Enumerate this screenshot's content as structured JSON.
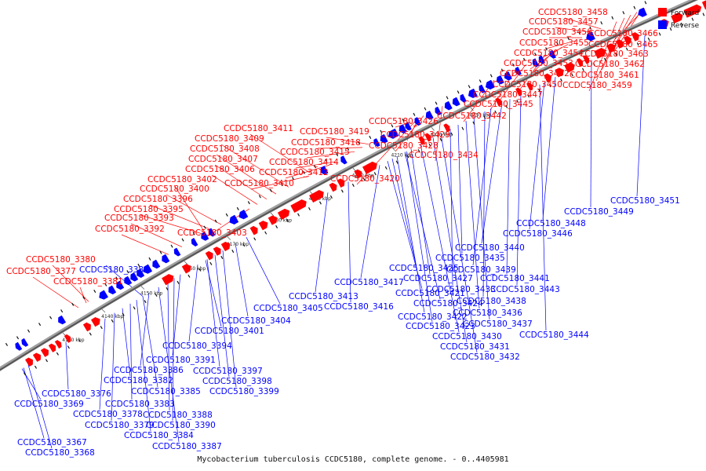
{
  "caption": "Mycobacterium tuberculosis CCDC5180, complete genome. - 0..4405981",
  "legend": {
    "forward": {
      "label": "Forward",
      "color": "#ff0000"
    },
    "reverse": {
      "label": "Reverse",
      "color": "#0000ff"
    }
  },
  "scale_ticks": [
    "4130 kbp",
    "4140 kbp",
    "4150 kbp",
    "4160 kbp",
    "4170 kbp",
    "4180 kbp",
    "4190 kbp",
    "4200 kbp",
    "4210 kbp",
    "4220 kbp",
    "4230 kbp"
  ],
  "forward_genes": [
    "CCDC5180_3377",
    "CCDC5180_3380",
    "CCDC5180_3381",
    "CCDC5180_3392",
    "CCDC5180_3393",
    "CCDC5180_3395",
    "CCDC5180_3396",
    "CCDC5180_3400",
    "CCDC5180_3402",
    "CCDC5180_3403",
    "CCDC5180_3406",
    "CCDC5180_3407",
    "CCDC5180_3408",
    "CCDC5180_3409",
    "CCDC5180_3410",
    "CCDC5180_3411",
    "CCDC5180_3412",
    "CCDC5180_3414",
    "CCDC5180_3415",
    "CCDC5180_3418",
    "CCDC5180_3419",
    "CCDC5180_3420",
    "CCDC5180_3426",
    "CCDC5180_3428",
    "CCDC5180_3429",
    "CCDC5180_3434",
    "CCDC5180_3442",
    "CCDC5180_3445",
    "CCDC5180_3447",
    "CCDC5180_3450",
    "CCDC5180_3452",
    "CCDC5180_3453",
    "CCDC5180_3454",
    "CCDC5180_3455",
    "CCDC5180_3456",
    "CCDC5180_3457",
    "CCDC5180_3458",
    "CCDC5180_3459",
    "CCDC5180_3461",
    "CCDC5180_3462",
    "CCDC5180_3463",
    "CCDC5180_3465",
    "CCDC5180_3466"
  ],
  "reverse_genes": [
    "CCDC5180_3367",
    "CCDC5180_3368",
    "CCDC5180_3369",
    "CCDC5180_3376",
    "CCDC5180_3378",
    "CCDC5180_3379",
    "CCDC5180_3382",
    "CCDC5180_3383",
    "CCDC5180_3384",
    "CCDC5180_3385",
    "CCDC5180_3386",
    "CCDC5180_3387",
    "CCDC5180_3388",
    "CCDC5180_3389",
    "CCDC5180_3390",
    "CCDC5180_3391",
    "CCDC5180_3394",
    "CCDC5180_3397",
    "CCDC5180_3398",
    "CCDC5180_3399",
    "CCDC5180_3401",
    "CCDC5180_3404",
    "CCDC5180_3405",
    "CCDC5180_3413",
    "CCDC5180_3416",
    "CCDC5180_3417",
    "CCDC5180_3421",
    "CCDC5180_3422",
    "CCDC5180_3423",
    "CCDC5180_3424",
    "CCDC5180_3425",
    "CCDC5180_3427",
    "CCDC5180_3430",
    "CCDC5180_3431",
    "CCDC5180_3432",
    "CCDC5180_3433",
    "CCDC5180_3435",
    "CCDC5180_3436",
    "CCDC5180_3437",
    "CCDC5180_3438",
    "CCDC5180_3439",
    "CCDC5180_3440",
    "CCDC5180_3441",
    "CCDC5180_3443",
    "CCDC5180_3444",
    "CCDC5180_3446",
    "CCDC5180_3448",
    "CCDC5180_3449",
    "CCDC5180_3451"
  ]
}
